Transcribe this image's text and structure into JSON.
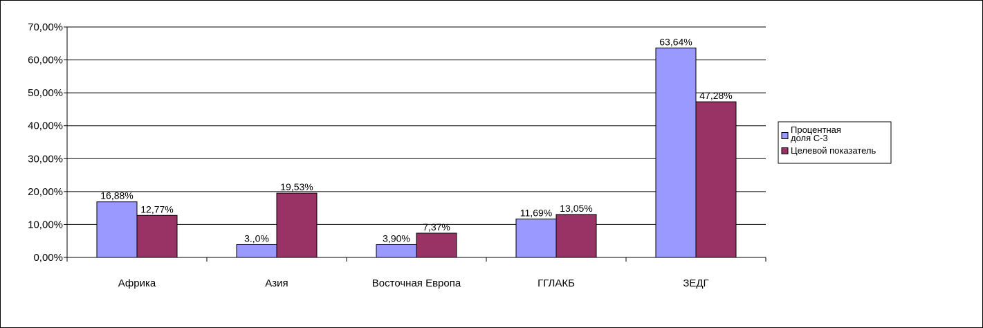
{
  "chart_data": {
    "type": "bar",
    "categories": [
      "Африка",
      "Азия",
      "Восточная Европа",
      "ГГЛАКБ",
      "ЗЕДГ"
    ],
    "series": [
      {
        "name": "Процентная доля С-3",
        "legend_lines": [
          "Процентная",
          "доля С-3"
        ],
        "values": [
          16.88,
          3.9,
          3.9,
          11.69,
          63.64
        ],
        "labels": [
          "16,88%",
          "3.,0%",
          "3,90%",
          "11,69%",
          "63,64%"
        ],
        "color": "#9999ff"
      },
      {
        "name": "Целевой показатель",
        "legend_lines": [
          "Целевой показатель"
        ],
        "values": [
          12.77,
          19.53,
          7.37,
          13.05,
          47.28
        ],
        "labels": [
          "12,77%",
          "19,53%",
          "7,37%",
          "13,05%",
          "47,28%"
        ],
        "color": "#993366"
      }
    ],
    "y_ticks": [
      0,
      10,
      20,
      30,
      40,
      50,
      60,
      70
    ],
    "y_tick_labels": [
      "0,00%",
      "10,00%",
      "20,00%",
      "30,00%",
      "40,00%",
      "50,00%",
      "60,00%",
      "70,00%"
    ],
    "ylim": [
      0,
      70
    ],
    "grid": true,
    "legend_position": "right",
    "title": "",
    "xlabel": "",
    "ylabel": ""
  }
}
